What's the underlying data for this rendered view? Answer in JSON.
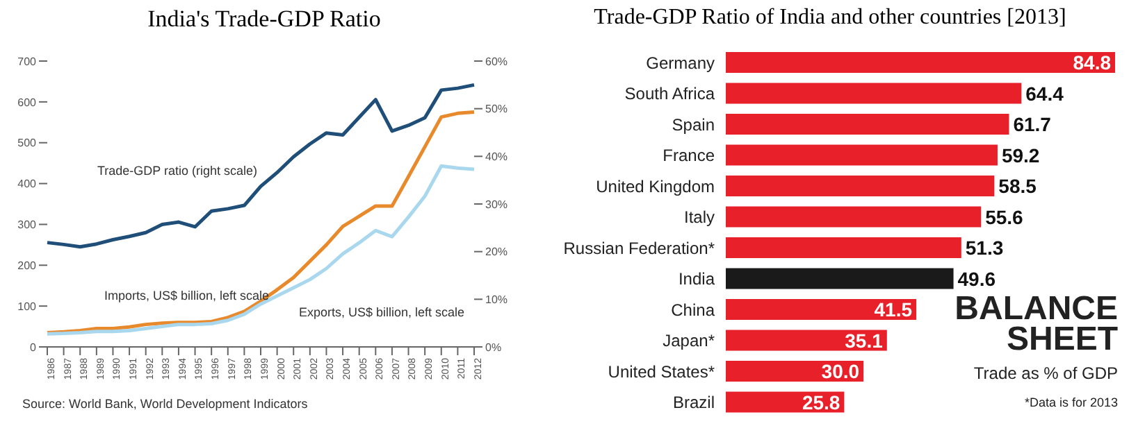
{
  "chart_data": [
    {
      "type": "line",
      "title": "India's Trade-GDP Ratio",
      "categories": [
        "1986",
        "1987",
        "1988",
        "1989",
        "1990",
        "1991",
        "1992",
        "1993",
        "1994",
        "1995",
        "1996",
        "1997",
        "1998",
        "1999",
        "2000",
        "2001",
        "2002",
        "2003",
        "2004",
        "2005",
        "2006",
        "2007",
        "2008",
        "2009",
        "2010",
        "2011",
        "2012"
      ],
      "series": [
        {
          "name": "Trade-GDP ratio (right scale)",
          "color": "#1f4e79",
          "axis": "y2",
          "values": [
            21.9,
            21.5,
            21.0,
            21.6,
            22.5,
            23.2,
            24.0,
            25.7,
            26.2,
            25.2,
            28.5,
            29.0,
            29.7,
            33.7,
            36.6,
            39.9,
            42.6,
            44.9,
            44.5,
            48.2,
            51.9,
            45.3,
            46.5,
            48.1,
            53.9,
            54.3,
            55.0
          ]
        },
        {
          "name": "Imports, US$ billion, left scale",
          "color": "#e8892b",
          "values": [
            35,
            37,
            40,
            45,
            45,
            49,
            55,
            58,
            60,
            60,
            62,
            72,
            87,
            112,
            140,
            170,
            210,
            250,
            295,
            320,
            345,
            345,
            417,
            490,
            563,
            572,
            575
          ]
        },
        {
          "name": "Exports, US$ billion, left scale",
          "color": "#a9d8ee",
          "values": [
            32,
            33,
            35,
            38,
            38,
            40,
            45,
            50,
            55,
            55,
            57,
            65,
            80,
            105,
            125,
            145,
            165,
            192,
            228,
            255,
            285,
            270,
            318,
            369,
            443,
            438,
            435
          ]
        }
      ],
      "ylim": [
        0,
        700
      ],
      "yticks": [
        0,
        100,
        200,
        300,
        400,
        500,
        600,
        700
      ],
      "y2lim": [
        0,
        60
      ],
      "y2ticks": [
        {
          "value": 0,
          "label": "0%"
        },
        {
          "value": 10,
          "label": "10%"
        },
        {
          "value": 20,
          "label": "20%"
        },
        {
          "value": 30,
          "label": "30%"
        },
        {
          "value": 40,
          "label": "40%"
        },
        {
          "value": 50,
          "label": "50%"
        },
        {
          "value": 60,
          "label": "60%"
        }
      ],
      "marker": "none",
      "line_style": "solid",
      "grid": false,
      "legend": false,
      "annotations": [
        "Source: World Bank, World Development Indicators"
      ]
    },
    {
      "type": "bar",
      "orientation": "horizontal",
      "title": "Trade-GDP Ratio of India and other countries [2013]",
      "categories": [
        "Germany",
        "South Africa",
        "Spain",
        "France",
        "United Kingdom",
        "Italy",
        "Russian Federation*",
        "India",
        "China",
        "Japan*",
        "United States*",
        "Brazil"
      ],
      "values": [
        84.8,
        64.4,
        61.7,
        59.2,
        58.5,
        55.6,
        51.3,
        49.6,
        41.5,
        35.1,
        30.0,
        25.8
      ],
      "colors": [
        "#e8202a",
        "#e8202a",
        "#e8202a",
        "#e8202a",
        "#e8202a",
        "#e8202a",
        "#e8202a",
        "#1a1a1a",
        "#e8202a",
        "#e8202a",
        "#e8202a",
        "#e8202a"
      ],
      "value_labels": [
        "84.8",
        "64.4",
        "61.7",
        "59.2",
        "58.5",
        "55.6",
        "51.3",
        "49.6",
        "41.5",
        "35.1",
        "30.0",
        "25.8"
      ],
      "legend": false,
      "grid": false,
      "annotations": [
        "BALANCE SHEET",
        "Trade as % of GDP",
        "*Data is for 2013"
      ]
    }
  ]
}
